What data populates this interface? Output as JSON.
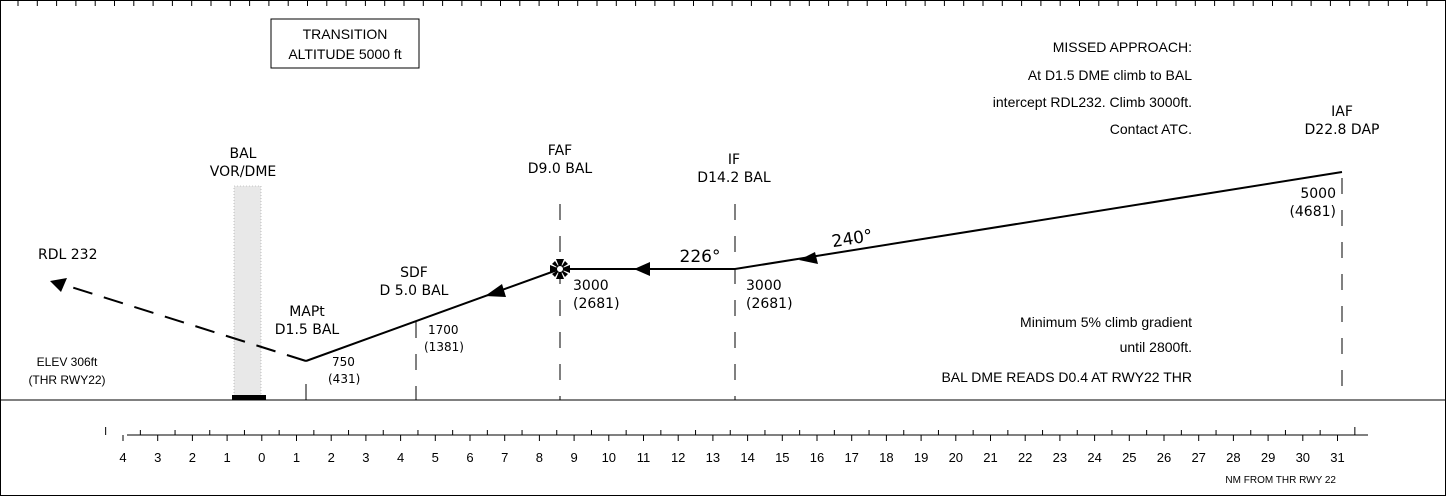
{
  "transition_box": {
    "line1": "TRANSITION",
    "line2": "ALTITUDE 5000 ft"
  },
  "missed_approach": {
    "title": "MISSED APPROACH:",
    "line1": "At D1.5 DME climb to BAL",
    "line2": "intercept RDL232. Climb 3000ft.",
    "line3": "Contact ATC."
  },
  "fixes": {
    "iaf": {
      "name": "IAF",
      "dme": "D22.8 DAP",
      "alt": "5000",
      "height": "(4681)"
    },
    "if": {
      "name": "IF",
      "dme": "D14.2 BAL",
      "alt": "3000",
      "height": "(2681)"
    },
    "faf": {
      "name": "FAF",
      "dme": "D9.0 BAL",
      "alt": "3000",
      "height": "(2681)"
    },
    "sdf": {
      "name": "SDF",
      "dme": "D 5.0 BAL",
      "alt": "1700",
      "height": "(1381)"
    },
    "mapt": {
      "name": "MAPt",
      "dme": "D1.5 BAL",
      "alt": "750",
      "height": "(431)"
    }
  },
  "navaid": {
    "line1": "BAL",
    "line2": "VOR/DME"
  },
  "courses": {
    "initial": "240°",
    "intermediate": "226°"
  },
  "missed_radial": "RDL 232",
  "elevation": {
    "line1": "ELEV 306ft",
    "line2": "(THR RWY22)"
  },
  "notes": {
    "climb_line1": "Minimum 5% climb gradient",
    "climb_line2": "until 2800ft.",
    "dme_note": "BAL DME READS D0.4 AT RWY22 THR"
  },
  "scale": {
    "labels": [
      "4",
      "3",
      "2",
      "1",
      "0",
      "1",
      "2",
      "3",
      "4",
      "5",
      "6",
      "7",
      "8",
      "9",
      "10",
      "11",
      "12",
      "13",
      "14",
      "15",
      "16",
      "17",
      "18",
      "19",
      "20",
      "21",
      "22",
      "23",
      "24",
      "25",
      "26",
      "27",
      "28",
      "29",
      "30",
      "31"
    ],
    "caption": "NM FROM THR RWY 22"
  }
}
